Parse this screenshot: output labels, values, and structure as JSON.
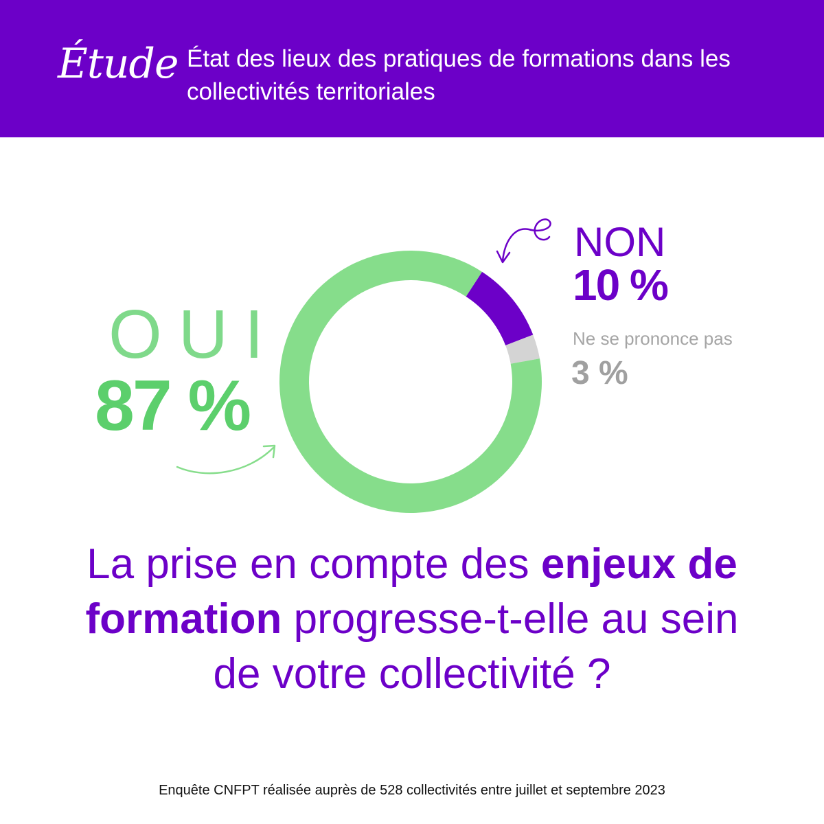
{
  "header": {
    "tag": "Étude",
    "title": "État des lieux des pratiques de formations dans les collectivités territoriales"
  },
  "chart_data": {
    "type": "pie",
    "variant": "donut",
    "categories": [
      "OUI",
      "NON",
      "Ne se prononce pas"
    ],
    "values": [
      87,
      10,
      3
    ],
    "value_labels": [
      "87 %",
      "10 %",
      "3 %"
    ],
    "colors": [
      "#86dd8b",
      "#6c00c8",
      "#d4d4d4"
    ]
  },
  "question": {
    "part1": "La prise en compte des ",
    "bold1": "enjeux de formation",
    "part2": " progresse-t-elle au sein de votre collectivité ?"
  },
  "footer": "Enquête CNFPT réalisée auprès de 528 collectivités entre juillet et septembre 2023",
  "colors": {
    "brand_purple": "#6c00c8",
    "green": "#5ccf6c",
    "grey": "#a0a0a0"
  }
}
